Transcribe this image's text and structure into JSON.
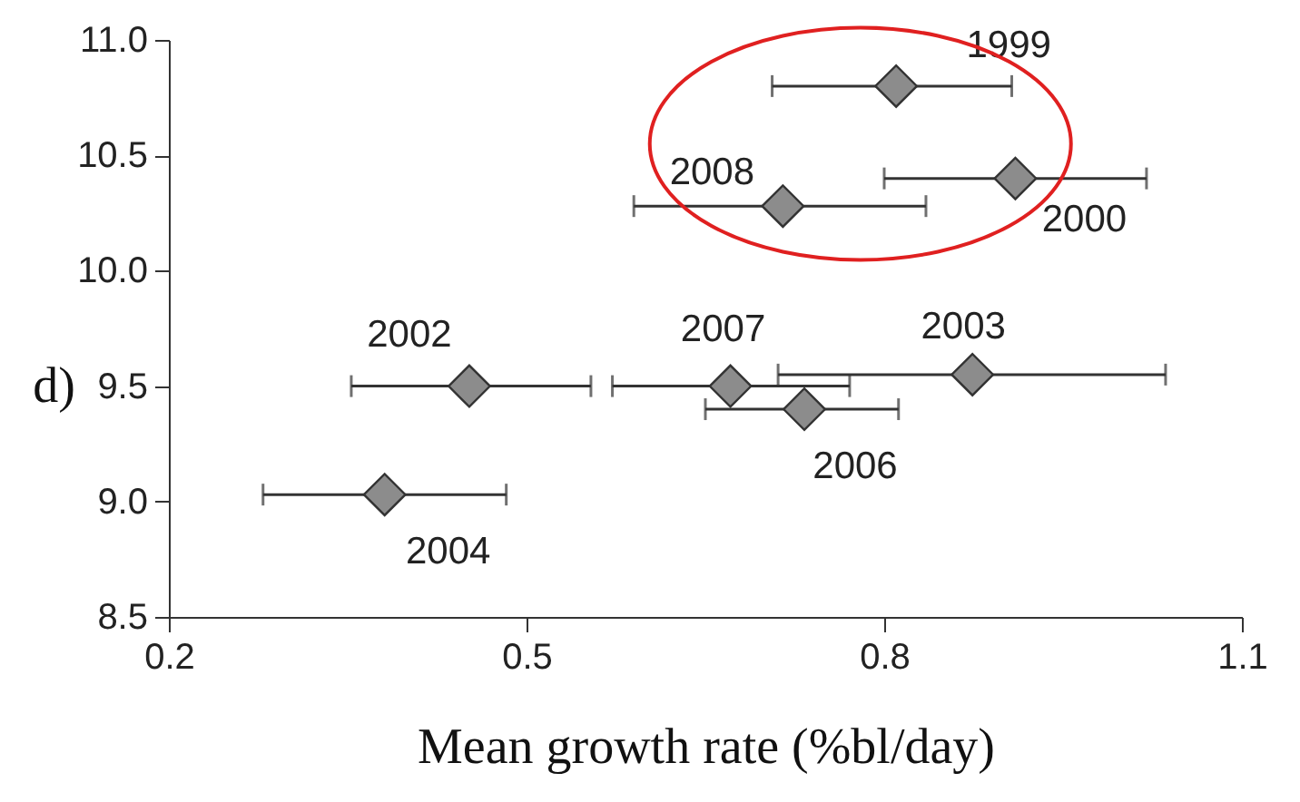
{
  "chart_data": {
    "type": "scatter",
    "xlabel": "Mean growth rate (%bl/day)",
    "ylabel": "d)",
    "x": [
      0.81,
      0.91,
      0.715,
      0.452,
      0.381,
      0.671,
      0.733,
      0.874
    ],
    "values": [
      10.8,
      10.4,
      10.28,
      9.5,
      9.03,
      9.5,
      9.4,
      9.55
    ],
    "xerrors": [
      [
        0.706,
        0.907
      ],
      [
        0.8,
        1.02
      ],
      [
        0.59,
        0.835
      ],
      [
        0.353,
        0.554
      ],
      [
        0.279,
        0.483
      ],
      [
        0.572,
        0.771
      ],
      [
        0.65,
        0.812
      ],
      [
        0.711,
        1.036
      ]
    ],
    "annotations": [
      {
        "text": "1999",
        "x": 0.81,
        "y": 10.8
      },
      {
        "text": "2000",
        "x": 0.91,
        "y": 10.4
      },
      {
        "text": "2008",
        "x": 0.715,
        "y": 10.28
      },
      {
        "text": "2002",
        "x": 0.452,
        "y": 9.5
      },
      {
        "text": "2004",
        "x": 0.381,
        "y": 9.03
      },
      {
        "text": "2007",
        "x": 0.671,
        "y": 9.5
      },
      {
        "text": "2006",
        "x": 0.733,
        "y": 9.4
      },
      {
        "text": "2003",
        "x": 0.874,
        "y": 9.55
      }
    ],
    "color": "#8c8c8c",
    "marker": "diamond",
    "grid": false,
    "xlim": [
      0.2,
      1.1
    ],
    "xticks": [
      0.2,
      0.5,
      0.8,
      1.1
    ],
    "ylim": [
      8.5,
      11.0
    ],
    "yticks": [
      {
        "value": 8.5,
        "label": "8.5"
      },
      {
        "value": 9.0,
        "label": "9.0"
      },
      {
        "value": 9.5,
        "label": "9.5"
      },
      {
        "value": 10.0,
        "label": "10.0"
      },
      {
        "value": 10.5,
        "label": "10.5"
      },
      {
        "value": 11.0,
        "label": "11.0"
      }
    ]
  }
}
